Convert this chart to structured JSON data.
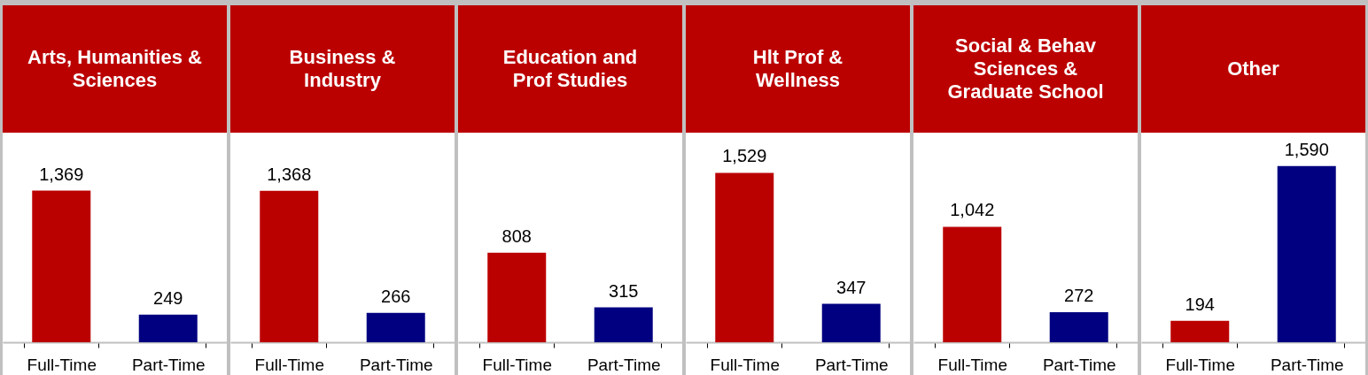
{
  "chart_data": [
    {
      "type": "bar",
      "title": "Arts, Humanities &\nSciences",
      "categories": [
        "Full-Time",
        "Part-Time"
      ],
      "values": [
        1369,
        249
      ],
      "colors": [
        "#bb0000",
        "#000080"
      ],
      "value_labels": [
        "1,369",
        "249"
      ]
    },
    {
      "type": "bar",
      "title": "Business &\nIndustry",
      "categories": [
        "Full-Time",
        "Part-Time"
      ],
      "values": [
        1368,
        266
      ],
      "colors": [
        "#bb0000",
        "#000080"
      ],
      "value_labels": [
        "1,368",
        "266"
      ]
    },
    {
      "type": "bar",
      "title": "Education and\nProf Studies",
      "categories": [
        "Full-Time",
        "Part-Time"
      ],
      "values": [
        808,
        315
      ],
      "colors": [
        "#bb0000",
        "#000080"
      ],
      "value_labels": [
        "808",
        "315"
      ]
    },
    {
      "type": "bar",
      "title": "Hlt Prof &\nWellness",
      "categories": [
        "Full-Time",
        "Part-Time"
      ],
      "values": [
        1529,
        347
      ],
      "colors": [
        "#bb0000",
        "#000080"
      ],
      "value_labels": [
        "1,529",
        "347"
      ]
    },
    {
      "type": "bar",
      "title": "Social & Behav\nSciences &\nGraduate School",
      "categories": [
        "Full-Time",
        "Part-Time"
      ],
      "values": [
        1042,
        272
      ],
      "colors": [
        "#bb0000",
        "#000080"
      ],
      "value_labels": [
        "1,042",
        "272"
      ]
    },
    {
      "type": "bar",
      "title": "Other",
      "categories": [
        "Full-Time",
        "Part-Time"
      ],
      "values": [
        194,
        1590
      ],
      "colors": [
        "#bb0000",
        "#000080"
      ],
      "value_labels": [
        "194",
        "1,590"
      ]
    }
  ]
}
